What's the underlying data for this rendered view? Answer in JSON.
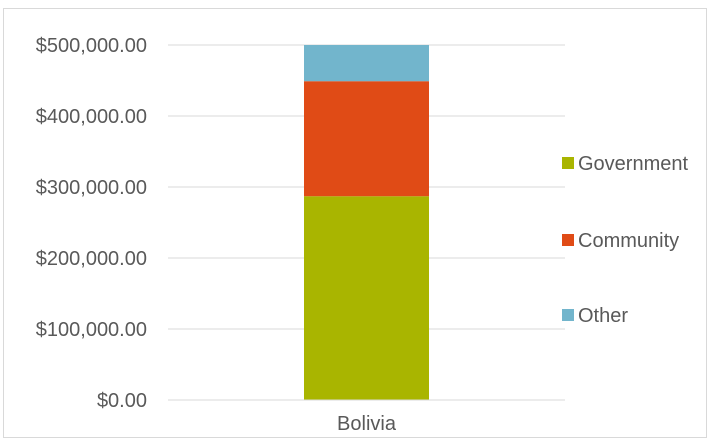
{
  "chart_data": {
    "type": "bar",
    "stacked": true,
    "categories": [
      "Bolivia"
    ],
    "series": [
      {
        "name": "Government",
        "values": [
          287000
        ],
        "color": "#a9b500"
      },
      {
        "name": "Community",
        "values": [
          162000
        ],
        "color": "#e04b16"
      },
      {
        "name": "Other",
        "values": [
          51000
        ],
        "color": "#72b5cc"
      }
    ],
    "ylim": [
      0,
      500000
    ],
    "y_ticks": [
      0,
      100000,
      200000,
      300000,
      400000,
      500000
    ],
    "y_tick_labels": [
      "$0.00",
      "$100,000.00",
      "$200,000.00",
      "$300,000.00",
      "$400,000.00",
      "$500,000.00"
    ],
    "grid": true,
    "legend_position": "right",
    "title": "",
    "xlabel": "",
    "ylabel": ""
  }
}
